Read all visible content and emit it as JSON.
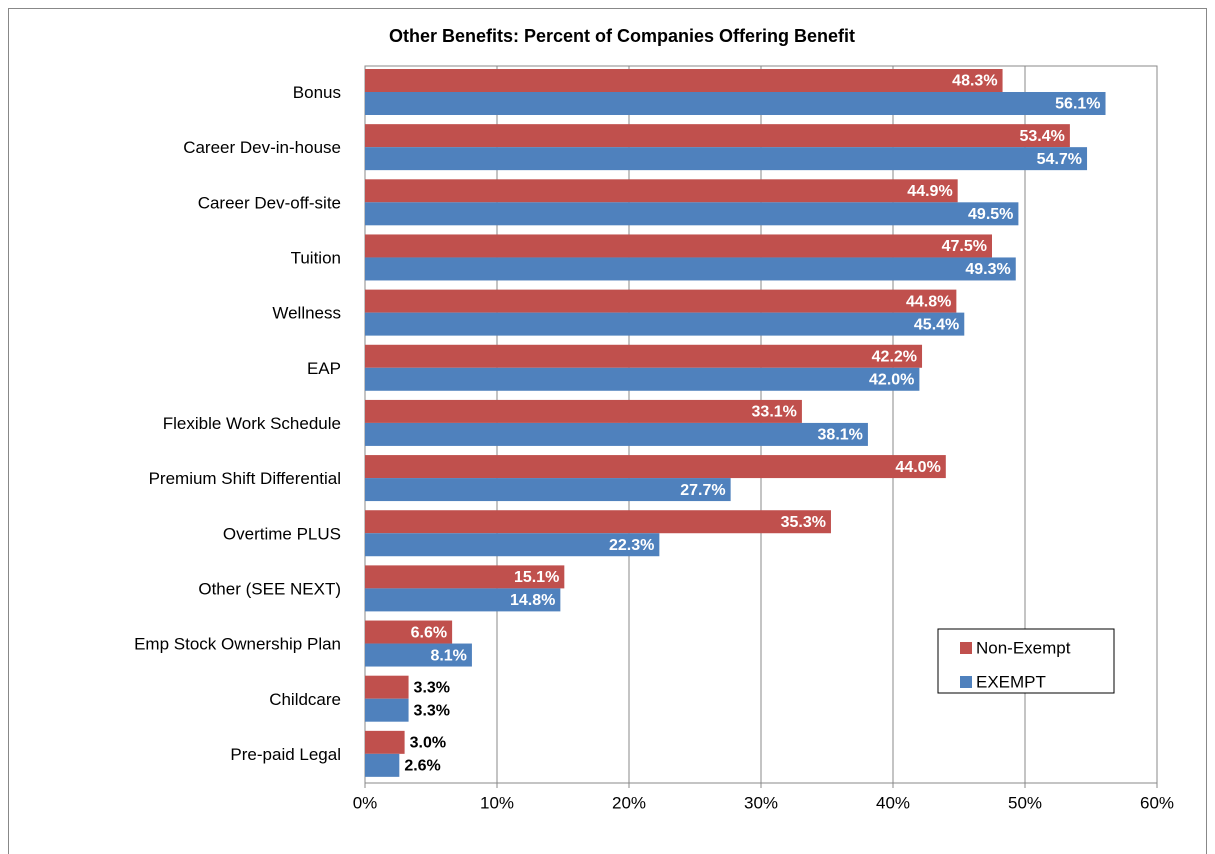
{
  "chart_data": {
    "type": "hbar",
    "title": "Other Benefits: Percent of Companies Offering Benefit",
    "categories": [
      "Bonus",
      "Career Dev-in-house",
      "Career Dev-off-site",
      "Tuition",
      "Wellness",
      "EAP",
      "Flexible Work Schedule",
      "Premium Shift Differential",
      "Overtime PLUS",
      "Other (SEE NEXT)",
      "Emp Stock Ownership Plan",
      "Childcare",
      "Pre-paid Legal"
    ],
    "series": [
      {
        "name": "Non-Exempt",
        "color": "#c0504d",
        "values": [
          48.3,
          53.4,
          44.9,
          47.5,
          44.8,
          42.2,
          33.1,
          44.0,
          35.3,
          15.1,
          6.6,
          3.3,
          3.0
        ],
        "value_labels": [
          "48.3%",
          "53.4%",
          "44.9%",
          "47.5%",
          "44.8%",
          "42.2%",
          "33.1%",
          "44.0%",
          "35.3%",
          "15.1%",
          "6.6%",
          "3.3%",
          "3.0%"
        ]
      },
      {
        "name": "EXEMPT",
        "color": "#4f81bd",
        "values": [
          56.1,
          54.7,
          49.5,
          49.3,
          45.4,
          42.0,
          38.1,
          27.7,
          22.3,
          14.8,
          8.1,
          3.3,
          2.6
        ],
        "value_labels": [
          "56.1%",
          "54.7%",
          "49.5%",
          "49.3%",
          "45.4%",
          "42.0%",
          "38.1%",
          "27.7%",
          "22.3%",
          "14.8%",
          "8.1%",
          "3.3%",
          "2.6%"
        ]
      }
    ],
    "xlim": [
      0,
      60
    ],
    "xticks": [
      {
        "value": 0,
        "label": "0%"
      },
      {
        "value": 10,
        "label": "10%"
      },
      {
        "value": 20,
        "label": "20%"
      },
      {
        "value": 30,
        "label": "30%"
      },
      {
        "value": 40,
        "label": "40%"
      },
      {
        "value": 50,
        "label": "50%"
      },
      {
        "value": 60,
        "label": "60%"
      }
    ],
    "grid": true,
    "legend": "lower right"
  }
}
